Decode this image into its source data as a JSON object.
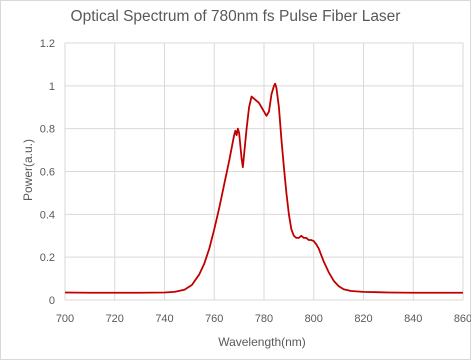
{
  "chart_data": {
    "type": "line",
    "title": "Optical Spectrum of 780nm fs Pulse Fiber Laser",
    "xlabel": "Wavelength(nm)",
    "ylabel": "Power(a.u.)",
    "xlim": [
      700,
      860
    ],
    "ylim": [
      0,
      1.2
    ],
    "xticks": [
      700,
      720,
      740,
      760,
      780,
      800,
      820,
      840,
      860
    ],
    "yticks": [
      0,
      0.2,
      0.4,
      0.6,
      0.8,
      1,
      1.2
    ],
    "grid": true,
    "legend": "none",
    "series": [
      {
        "color": "#c00000",
        "points": [
          [
            700,
            0.035
          ],
          [
            710,
            0.034
          ],
          [
            720,
            0.034
          ],
          [
            730,
            0.034
          ],
          [
            740,
            0.035
          ],
          [
            744,
            0.038
          ],
          [
            748,
            0.048
          ],
          [
            751,
            0.07
          ],
          [
            754,
            0.12
          ],
          [
            756,
            0.17
          ],
          [
            758,
            0.24
          ],
          [
            760,
            0.33
          ],
          [
            762,
            0.43
          ],
          [
            764,
            0.54
          ],
          [
            766,
            0.65
          ],
          [
            767,
            0.71
          ],
          [
            768,
            0.77
          ],
          [
            768.5,
            0.79
          ],
          [
            769,
            0.77
          ],
          [
            769.5,
            0.8
          ],
          [
            770,
            0.78
          ],
          [
            771,
            0.66
          ],
          [
            771.5,
            0.62
          ],
          [
            772,
            0.68
          ],
          [
            773,
            0.8
          ],
          [
            774,
            0.9
          ],
          [
            775,
            0.95
          ],
          [
            776,
            0.94
          ],
          [
            777,
            0.93
          ],
          [
            778,
            0.92
          ],
          [
            779,
            0.9
          ],
          [
            780,
            0.88
          ],
          [
            781,
            0.86
          ],
          [
            782,
            0.88
          ],
          [
            783,
            0.96
          ],
          [
            784,
            1.0
          ],
          [
            784.5,
            1.01
          ],
          [
            785,
            0.99
          ],
          [
            786,
            0.9
          ],
          [
            787,
            0.75
          ],
          [
            788,
            0.62
          ],
          [
            789,
            0.5
          ],
          [
            790,
            0.4
          ],
          [
            791,
            0.33
          ],
          [
            792,
            0.3
          ],
          [
            793,
            0.29
          ],
          [
            794,
            0.29
          ],
          [
            795,
            0.3
          ],
          [
            796,
            0.29
          ],
          [
            797,
            0.29
          ],
          [
            798,
            0.28
          ],
          [
            799,
            0.28
          ],
          [
            800,
            0.275
          ],
          [
            801,
            0.26
          ],
          [
            802,
            0.24
          ],
          [
            803,
            0.21
          ],
          [
            804,
            0.18
          ],
          [
            806,
            0.13
          ],
          [
            808,
            0.09
          ],
          [
            810,
            0.065
          ],
          [
            812,
            0.05
          ],
          [
            815,
            0.042
          ],
          [
            820,
            0.038
          ],
          [
            830,
            0.035
          ],
          [
            840,
            0.034
          ],
          [
            850,
            0.034
          ],
          [
            860,
            0.034
          ]
        ]
      }
    ]
  }
}
